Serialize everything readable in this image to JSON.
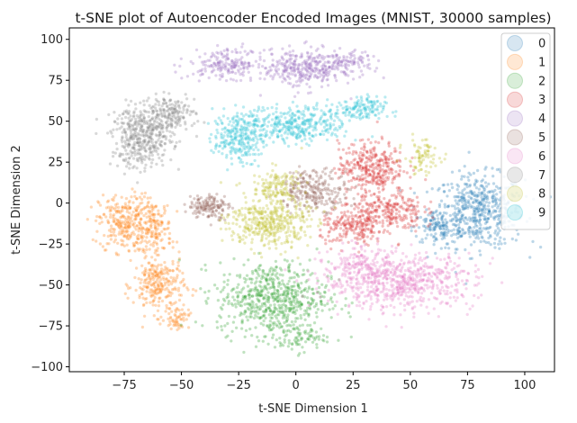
{
  "chart_data": {
    "type": "scatter",
    "title": "t-SNE plot of Autoencoder Encoded Images (MNIST, 30000 samples)",
    "xlabel": "t-SNE Dimension 1",
    "ylabel": "t-SNE Dimension 2",
    "xlim": [
      -99,
      113
    ],
    "ylim": [
      -103,
      107
    ],
    "xticks": [
      -75,
      -50,
      -25,
      0,
      25,
      50,
      75,
      100
    ],
    "yticks": [
      -100,
      -75,
      -50,
      -25,
      0,
      25,
      50,
      75,
      100
    ],
    "grid": false,
    "legend_position": "top-right",
    "point_alpha": 0.3,
    "series": [
      {
        "name": "0",
        "color": "#1f77b4",
        "clusters": [
          {
            "cx": 80,
            "cy": -5,
            "rx": 18,
            "ry": 20,
            "n": 560
          },
          {
            "cx": 62,
            "cy": -15,
            "rx": 10,
            "ry": 10,
            "n": 120
          }
        ]
      },
      {
        "name": "1",
        "color": "#ff7f0e",
        "clusters": [
          {
            "cx": -75,
            "cy": -12,
            "rx": 10,
            "ry": 16,
            "n": 280
          },
          {
            "cx": -62,
            "cy": -15,
            "rx": 7,
            "ry": 15,
            "n": 160
          },
          {
            "cx": -60,
            "cy": -50,
            "rx": 10,
            "ry": 16,
            "n": 260
          },
          {
            "cx": -52,
            "cy": -70,
            "rx": 5,
            "ry": 6,
            "n": 60
          }
        ]
      },
      {
        "name": "2",
        "color": "#2ca02c",
        "clusters": [
          {
            "cx": -10,
            "cy": -58,
            "rx": 22,
            "ry": 20,
            "n": 640
          },
          {
            "cx": 0,
            "cy": -82,
            "rx": 12,
            "ry": 8,
            "n": 90
          }
        ]
      },
      {
        "name": "3",
        "color": "#d62728",
        "clusters": [
          {
            "cx": 33,
            "cy": 22,
            "rx": 13,
            "ry": 14,
            "n": 340
          },
          {
            "cx": 40,
            "cy": -5,
            "rx": 14,
            "ry": 12,
            "n": 260
          },
          {
            "cx": 25,
            "cy": -15,
            "rx": 13,
            "ry": 10,
            "n": 200
          }
        ]
      },
      {
        "name": "4",
        "color": "#9467bd",
        "clusters": [
          {
            "cx": -30,
            "cy": 85,
            "rx": 15,
            "ry": 8,
            "n": 200
          },
          {
            "cx": 3,
            "cy": 82,
            "rx": 15,
            "ry": 11,
            "n": 300
          },
          {
            "cx": 22,
            "cy": 85,
            "rx": 10,
            "ry": 7,
            "n": 120
          }
        ]
      },
      {
        "name": "5",
        "color": "#8c564b",
        "clusters": [
          {
            "cx": 8,
            "cy": 8,
            "rx": 14,
            "ry": 11,
            "n": 260
          },
          {
            "cx": -38,
            "cy": -2,
            "rx": 8,
            "ry": 7,
            "n": 150
          }
        ]
      },
      {
        "name": "6",
        "color": "#e377c2",
        "clusters": [
          {
            "cx": 45,
            "cy": -48,
            "rx": 30,
            "ry": 15,
            "n": 700
          },
          {
            "cx": 28,
            "cy": -38,
            "rx": 12,
            "ry": 9,
            "n": 120
          }
        ]
      },
      {
        "name": "7",
        "color": "#7f7f7f",
        "clusters": [
          {
            "cx": -67,
            "cy": 40,
            "rx": 12,
            "ry": 17,
            "n": 420
          },
          {
            "cx": -55,
            "cy": 55,
            "rx": 10,
            "ry": 9,
            "n": 180
          }
        ]
      },
      {
        "name": "8",
        "color": "#bcbd22",
        "clusters": [
          {
            "cx": -12,
            "cy": -12,
            "rx": 16,
            "ry": 14,
            "n": 420
          },
          {
            "cx": -8,
            "cy": 10,
            "rx": 10,
            "ry": 10,
            "n": 140
          },
          {
            "cx": 55,
            "cy": 28,
            "rx": 7,
            "ry": 10,
            "n": 80
          }
        ]
      },
      {
        "name": "9",
        "color": "#17becf",
        "clusters": [
          {
            "cx": -25,
            "cy": 40,
            "rx": 10,
            "ry": 14,
            "n": 260
          },
          {
            "cx": 0,
            "cy": 48,
            "rx": 20,
            "ry": 10,
            "n": 360
          },
          {
            "cx": 28,
            "cy": 57,
            "rx": 10,
            "ry": 7,
            "n": 140
          }
        ]
      }
    ]
  }
}
